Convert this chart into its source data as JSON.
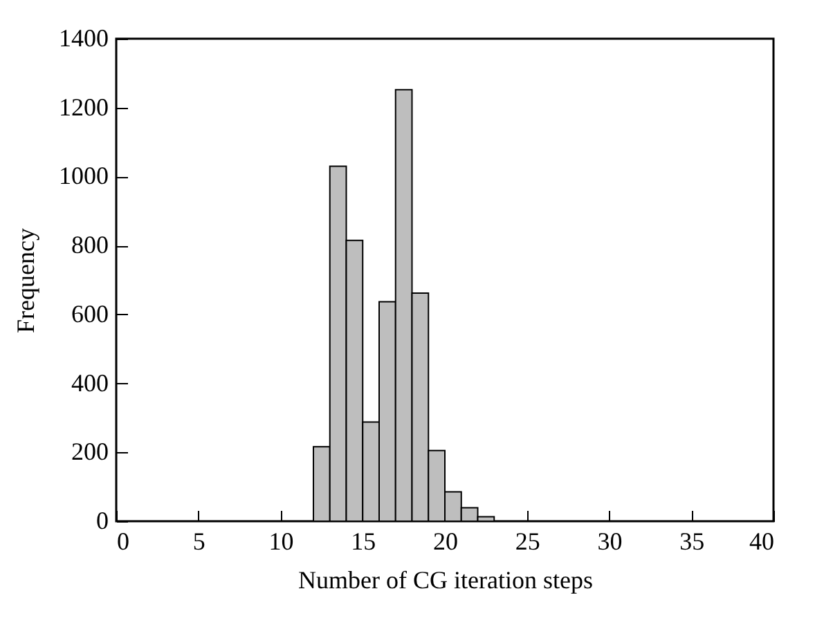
{
  "chart_data": {
    "type": "histogram",
    "xlabel": "Number of CG iteration steps",
    "ylabel": "Frequency",
    "bins": [
      12,
      13,
      14,
      15,
      16,
      17,
      18,
      19,
      20,
      21,
      22,
      23
    ],
    "values": [
      216,
      1030,
      815,
      288,
      637,
      1252,
      662,
      205,
      85,
      39,
      13
    ],
    "color": "#bebebe",
    "xlim": [
      0,
      40
    ],
    "xticks": [
      0,
      5,
      10,
      15,
      20,
      25,
      30,
      35,
      40
    ],
    "ylim": [
      0,
      1400
    ],
    "yticks": [
      0,
      200,
      400,
      600,
      800,
      1000,
      1200,
      1400
    ],
    "grid": false
  }
}
